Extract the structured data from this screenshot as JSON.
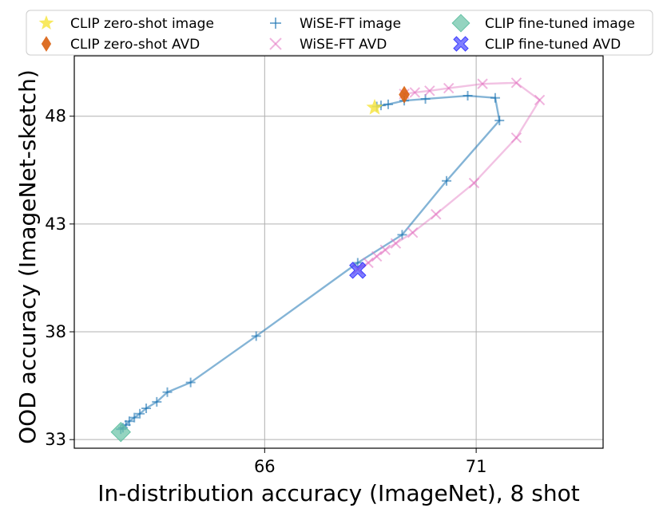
{
  "chart_data": {
    "type": "line",
    "xlabel": "In-distribution accuracy (ImageNet), 8 shot",
    "ylabel": "OOD accuracy (ImageNet-sketch)",
    "xlim": [
      61.5,
      74
    ],
    "ylim": [
      32.6,
      50.8
    ],
    "xticks": [
      66,
      71
    ],
    "yticks": [
      33,
      38,
      43,
      48
    ],
    "grid": true,
    "legend_position": "top",
    "legend_columns": 3,
    "series": [
      {
        "name": "WiSE-FT image",
        "kind": "line",
        "marker": "plus",
        "color": "#1f77b4",
        "x": [
          62.6,
          62.65,
          62.72,
          62.8,
          62.92,
          63.05,
          63.2,
          63.45,
          63.7,
          64.25,
          65.8,
          68.2,
          69.25,
          70.3,
          71.55,
          71.45,
          70.8,
          69.8,
          69.3,
          68.92,
          68.75,
          68.65
        ],
        "y": [
          33.48,
          33.55,
          33.68,
          33.85,
          34.02,
          34.2,
          34.45,
          34.75,
          35.2,
          35.65,
          37.8,
          41.2,
          42.5,
          45.0,
          47.8,
          48.85,
          48.95,
          48.8,
          48.72,
          48.55,
          48.5,
          48.45
        ]
      },
      {
        "name": "WiSE-FT AVD",
        "kind": "line",
        "marker": "x",
        "color": "#e377c2",
        "x": [
          68.2,
          68.45,
          68.65,
          68.85,
          69.1,
          69.5,
          70.05,
          70.95,
          71.95,
          72.5,
          71.95,
          71.15,
          70.35,
          69.9,
          69.55,
          69.3
        ],
        "y": [
          40.9,
          41.2,
          41.5,
          41.8,
          42.1,
          42.6,
          43.45,
          44.9,
          47.0,
          48.75,
          49.55,
          49.5,
          49.3,
          49.18,
          49.1,
          49.03
        ]
      },
      {
        "name": "CLIP zero-shot image",
        "kind": "point",
        "marker": "star",
        "color": "#f7e543",
        "x": [
          68.6
        ],
        "y": [
          48.4
        ]
      },
      {
        "name": "CLIP zero-shot AVD",
        "kind": "point",
        "marker": "diamond-thin",
        "color": "#d95f0e",
        "x": [
          69.3
        ],
        "y": [
          49.0
        ]
      },
      {
        "name": "CLIP fine-tuned image",
        "kind": "point",
        "marker": "diamond",
        "color": "#66c2a5",
        "x": [
          62.6
        ],
        "y": [
          33.35
        ]
      },
      {
        "name": "CLIP fine-tuned AVD",
        "kind": "point",
        "marker": "x-filled",
        "color": "#3b3bff",
        "x": [
          68.2
        ],
        "y": [
          40.85
        ]
      }
    ],
    "legend": [
      "CLIP zero-shot image",
      "CLIP zero-shot AVD",
      "WiSE-FT image",
      "WiSE-FT AVD",
      "CLIP fine-tuned image",
      "CLIP fine-tuned AVD"
    ]
  }
}
